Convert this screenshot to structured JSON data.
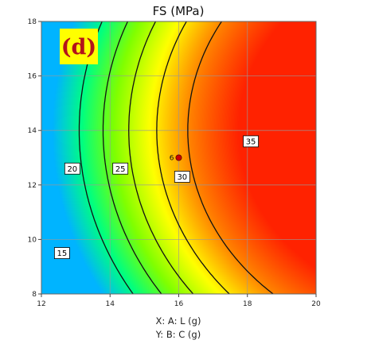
{
  "chart_data": {
    "type": "contour",
    "title": "FS (MPa)",
    "panel_label": "(d)",
    "xlabel": "X: A: L (g)",
    "ylabel": "Y: B: C (g)",
    "xlim": [
      12,
      20
    ],
    "ylim": [
      8,
      18
    ],
    "x_ticks": [
      "12",
      "14",
      "16",
      "18",
      "20"
    ],
    "y_ticks": [
      "8",
      "10",
      "12",
      "14",
      "16",
      "18"
    ],
    "grid": true,
    "colormap": [
      "#00b4ff",
      "#00ff80",
      "#80ff00",
      "#ffff00",
      "#ff8000",
      "#ff2200"
    ],
    "contour_levels": [
      {
        "label": "15",
        "label_x": 12.6,
        "label_y": 9.5
      },
      {
        "label": "20",
        "label_x": 12.9,
        "label_y": 12.6
      },
      {
        "label": "25",
        "label_x": 14.3,
        "label_y": 12.6
      },
      {
        "label": "30",
        "label_x": 16.1,
        "label_y": 12.3
      },
      {
        "label": "35",
        "label_x": 18.1,
        "label_y": 13.6
      }
    ],
    "design_point": {
      "x": 16,
      "y": 13,
      "label": "6",
      "color": "#cc0000"
    }
  }
}
